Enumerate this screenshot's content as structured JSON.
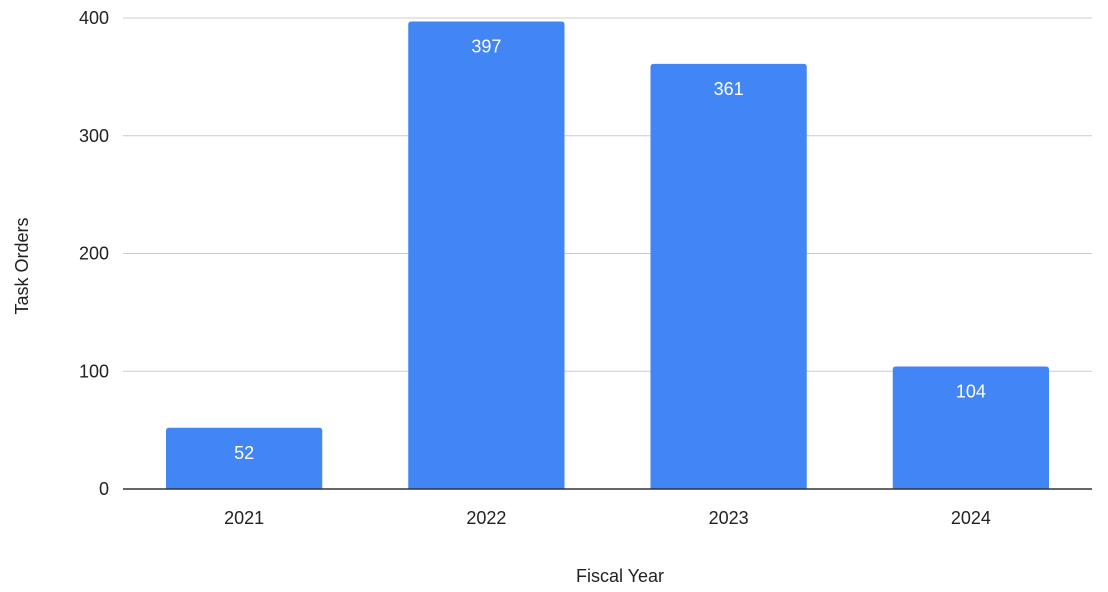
{
  "chart_data": {
    "type": "bar",
    "title": "",
    "xlabel": "Fiscal Year",
    "ylabel": "Task Orders",
    "categories": [
      "2021",
      "2022",
      "2023",
      "2024"
    ],
    "values": [
      52,
      397,
      361,
      104
    ],
    "data_labels": [
      "52",
      "397",
      "361",
      "104"
    ],
    "ylim": [
      0,
      400
    ],
    "yticks": [
      0,
      100,
      200,
      300,
      400
    ],
    "grid": true,
    "bar_color": "#4285f4",
    "gridline_color": "#cccccc",
    "axis_color": "#333333"
  }
}
